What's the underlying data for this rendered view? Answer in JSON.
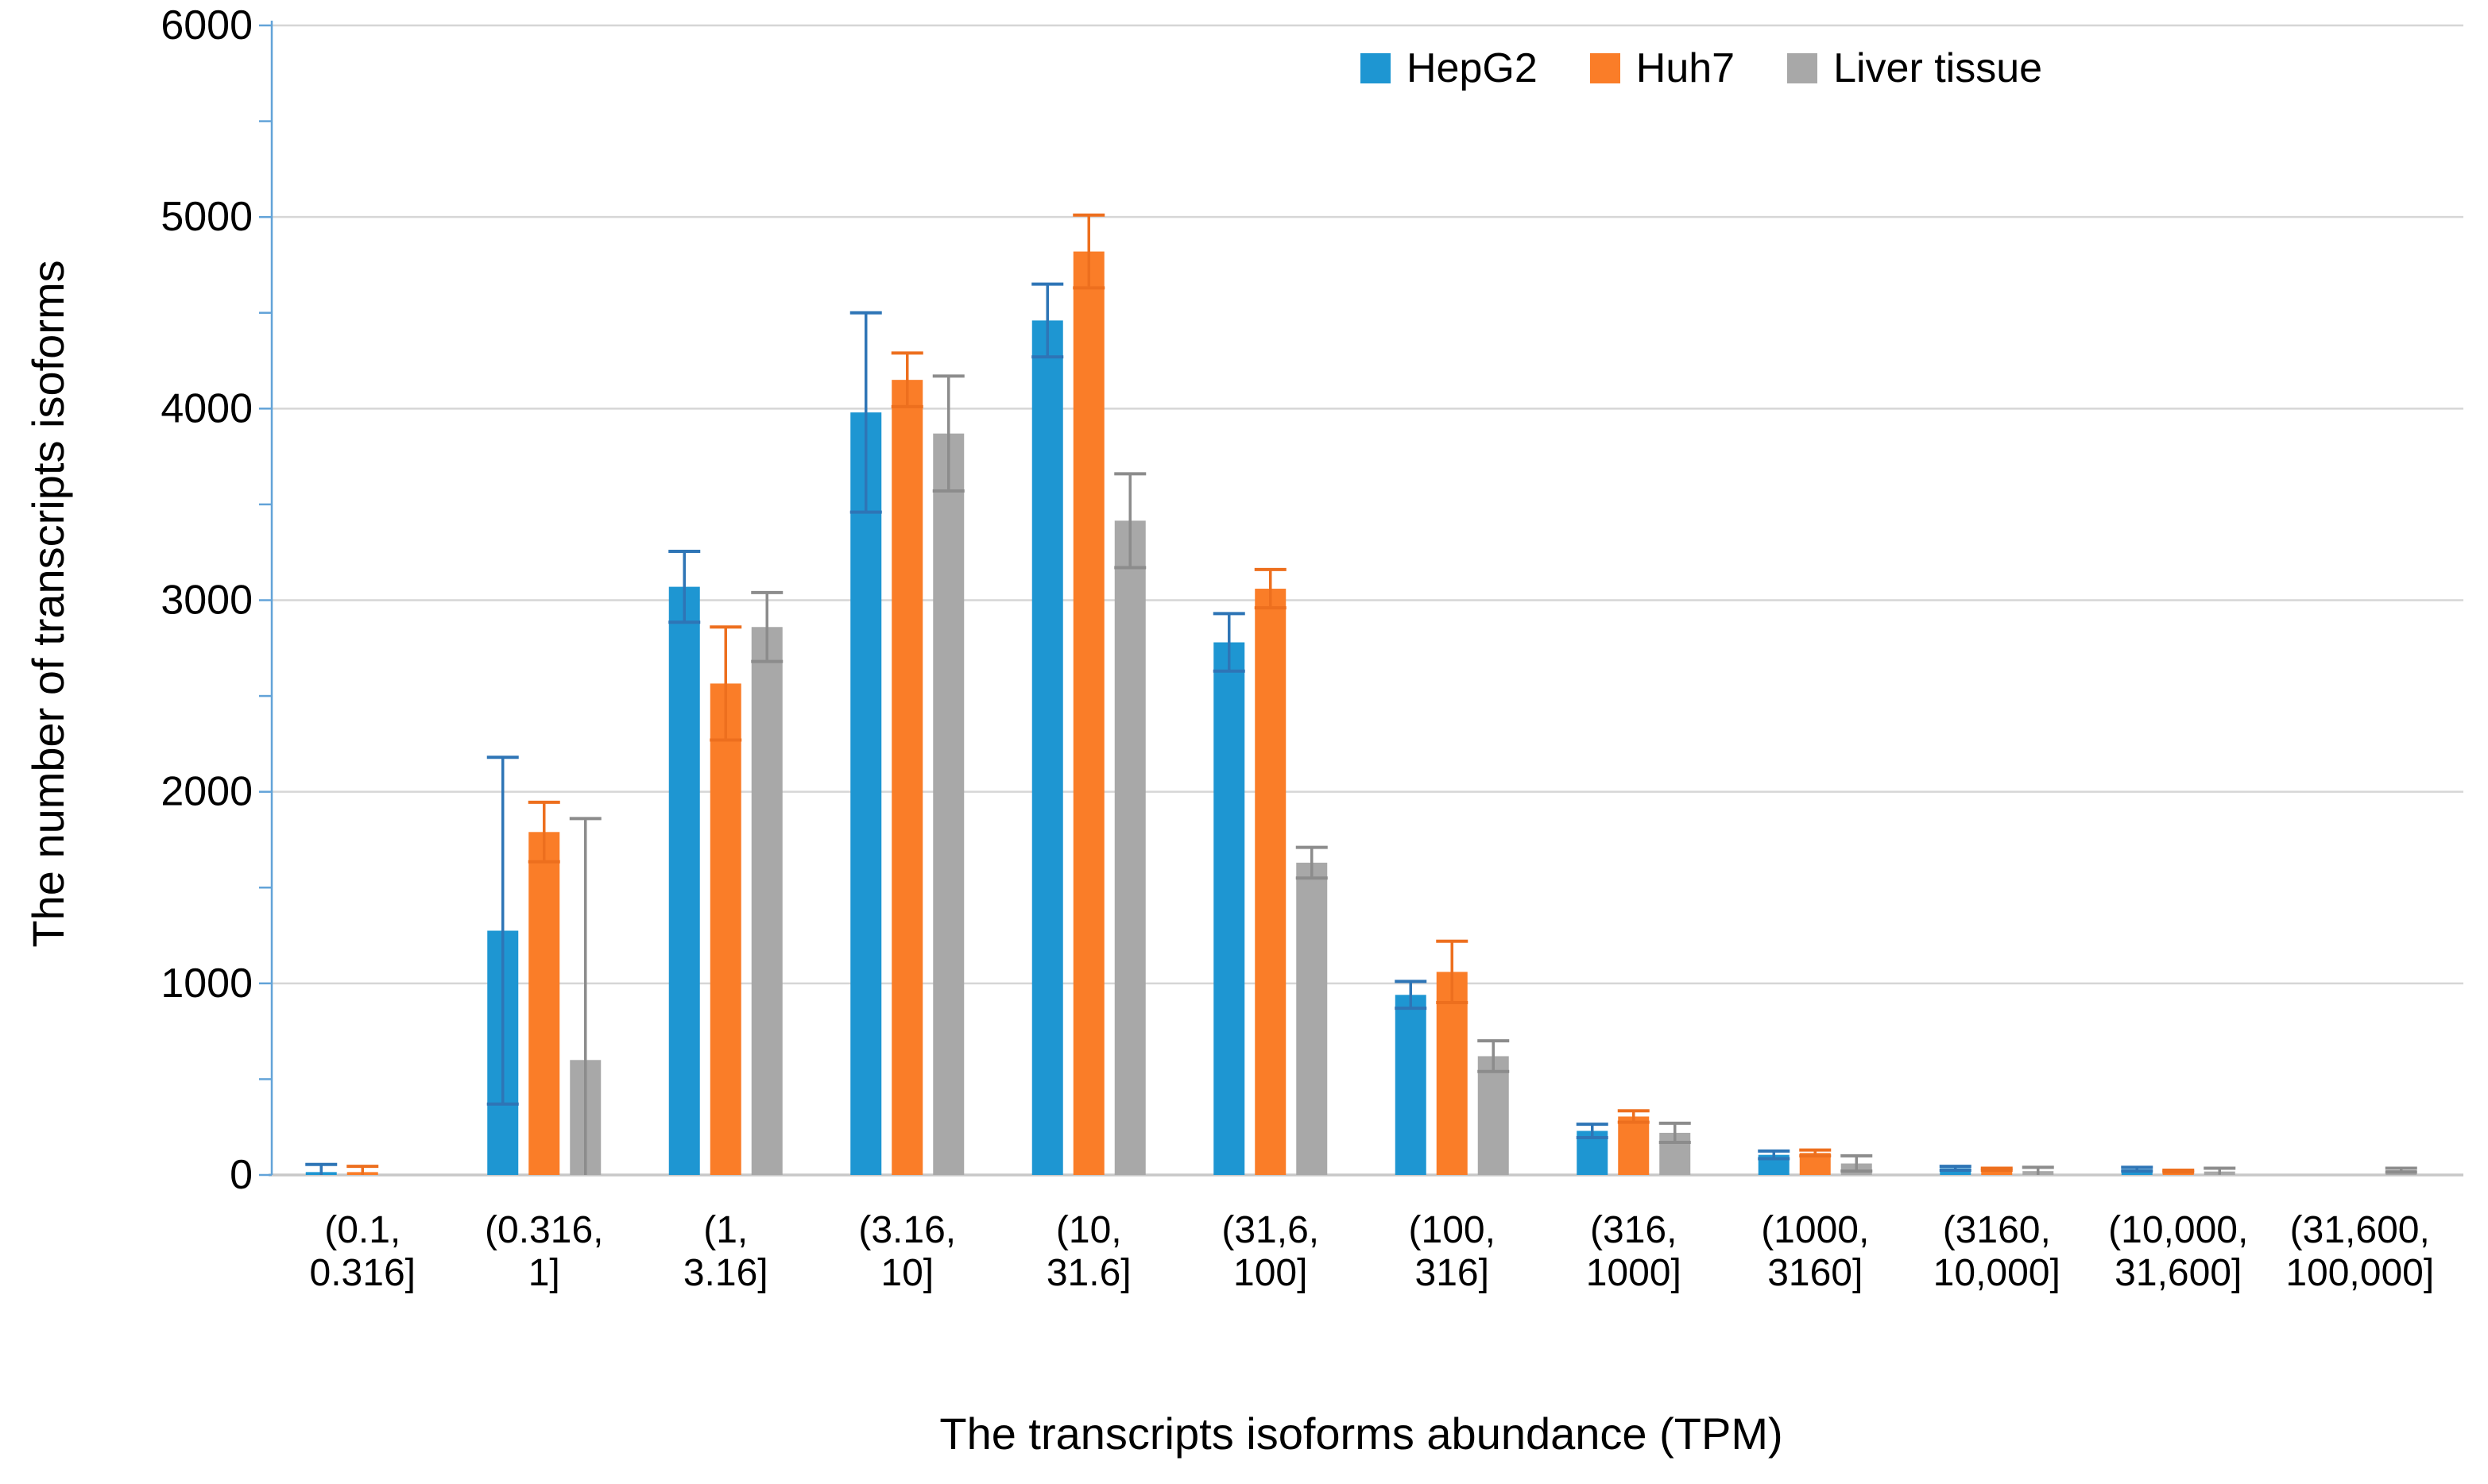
{
  "chart_data": {
    "type": "bar",
    "title": "",
    "xlabel": "The transcripts isoforms abundance (TPM)",
    "ylabel": "The number of transcripts isoforms",
    "ylim": [
      0,
      6000
    ],
    "y_major_step": 1000,
    "y_minor_step": 500,
    "y_tick_labels": [
      "0",
      "1000",
      "2000",
      "3000",
      "4000",
      "5000",
      "6000"
    ],
    "grid": "horizontal-major",
    "legend_position": "top-right",
    "categories": [
      "(0.1, 0.316]",
      "(0.316, 1]",
      "(1, 3.16]",
      "(3.16, 10]",
      "(10, 31.6]",
      "(31,6, 100]",
      "(100, 316]",
      "(316, 1000]",
      "(1000, 3160]",
      "(3160, 10,000]",
      "(10,000, 31,600]",
      "(31,600, 100,000]"
    ],
    "series": [
      {
        "name": "HepG2",
        "color": "#1E96D2",
        "error_color": "#2E75B6",
        "values": [
          15,
          1275,
          3070,
          3980,
          4460,
          2780,
          940,
          230,
          105,
          35,
          30,
          0
        ],
        "errors": [
          40,
          905,
          185,
          520,
          190,
          150,
          70,
          35,
          20,
          10,
          10,
          0
        ]
      },
      {
        "name": "Huh7",
        "color": "#FA7D28",
        "error_color": "#ED6F1E",
        "values": [
          15,
          1790,
          2565,
          4150,
          4820,
          3060,
          1060,
          305,
          115,
          30,
          20,
          0
        ],
        "errors": [
          30,
          155,
          295,
          140,
          190,
          100,
          160,
          30,
          15,
          5,
          5,
          0
        ]
      },
      {
        "name": "Liver tissue",
        "color": "#A8A8A8",
        "error_color": "#8C8C8C",
        "values": [
          0,
          600,
          2860,
          3870,
          3415,
          1630,
          620,
          220,
          60,
          20,
          18,
          25
        ],
        "errors": [
          0,
          1260,
          180,
          300,
          245,
          80,
          80,
          50,
          40,
          20,
          17,
          10
        ]
      }
    ],
    "axis_color": "#62A3D8",
    "gridline_color": "#D6D6D6",
    "baseline_color": "#C8C8C8",
    "text_color": "#000000"
  }
}
